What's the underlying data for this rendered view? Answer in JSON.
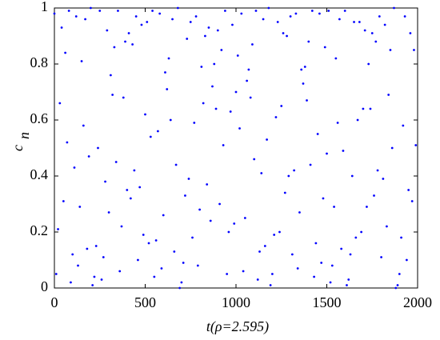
{
  "chart_data": {
    "type": "scatter",
    "xlabel": "t(ρ=2.595)",
    "ylabel": "c",
    "ylabel_subscript": "n",
    "color": "#0000ff",
    "xlim": [
      0,
      2000
    ],
    "xticks": [
      0,
      500,
      1000,
      1500,
      2000
    ],
    "ylim": [
      0,
      1
    ],
    "yticks": [
      0,
      0.2,
      0.4,
      0.6,
      0.8,
      1
    ],
    "x": [
      0,
      10,
      20,
      30,
      40,
      50,
      60,
      70,
      80,
      90,
      100,
      110,
      120,
      130,
      140,
      150,
      160,
      170,
      180,
      190,
      200,
      210,
      220,
      230,
      240,
      250,
      260,
      270,
      280,
      290,
      300,
      310,
      320,
      330,
      340,
      350,
      360,
      370,
      380,
      390,
      400,
      410,
      420,
      430,
      440,
      450,
      460,
      470,
      480,
      490,
      500,
      510,
      520,
      530,
      540,
      550,
      560,
      570,
      580,
      590,
      600,
      610,
      620,
      630,
      640,
      650,
      660,
      670,
      680,
      690,
      700,
      710,
      720,
      730,
      740,
      750,
      760,
      770,
      780,
      790,
      800,
      810,
      820,
      830,
      840,
      850,
      860,
      870,
      880,
      890,
      900,
      910,
      920,
      930,
      940,
      950,
      960,
      970,
      980,
      990,
      1000,
      1010,
      1020,
      1030,
      1040,
      1050,
      1060,
      1070,
      1080,
      1090,
      1100,
      1110,
      1120,
      1130,
      1140,
      1150,
      1160,
      1170,
      1180,
      1190,
      1200,
      1210,
      1220,
      1230,
      1240,
      1250,
      1260,
      1270,
      1280,
      1290,
      1300,
      1310,
      1320,
      1330,
      1340,
      1350,
      1360,
      1370,
      1380,
      1390,
      1400,
      1410,
      1420,
      1430,
      1440,
      1450,
      1460,
      1470,
      1480,
      1490,
      1500,
      1510,
      1520,
      1530,
      1540,
      1550,
      1560,
      1570,
      1580,
      1590,
      1600,
      1610,
      1620,
      1630,
      1640,
      1650,
      1660,
      1670,
      1680,
      1690,
      1700,
      1710,
      1720,
      1730,
      1740,
      1750,
      1760,
      1770,
      1780,
      1790,
      1800,
      1810,
      1820,
      1830,
      1840,
      1850,
      1860,
      1870,
      1880,
      1890,
      1900,
      1910,
      1920,
      1930,
      1940,
      1950,
      1960,
      1970,
      1980,
      1990
    ],
    "values": [
      0.98,
      0.05,
      0.21,
      0.66,
      0.93,
      0.31,
      0.84,
      0.52,
      0.99,
      0.02,
      0.12,
      0.43,
      0.97,
      0.08,
      0.29,
      0.81,
      0.58,
      0.96,
      0.14,
      0.47,
      1.0,
      0.01,
      0.04,
      0.15,
      0.5,
      0.99,
      0.03,
      0.11,
      0.38,
      0.92,
      0.27,
      0.76,
      0.69,
      0.86,
      0.45,
      0.99,
      0.06,
      0.22,
      0.68,
      0.88,
      0.35,
      0.91,
      0.32,
      0.87,
      0.42,
      0.97,
      0.1,
      0.36,
      0.94,
      0.19,
      0.62,
      0.95,
      0.16,
      0.54,
      0.99,
      0.04,
      0.17,
      0.56,
      0.98,
      0.07,
      0.26,
      0.77,
      0.71,
      0.82,
      0.6,
      0.96,
      0.13,
      0.44,
      1.0,
      0.0,
      0.02,
      0.09,
      0.33,
      0.89,
      0.39,
      0.95,
      0.18,
      0.59,
      0.97,
      0.08,
      0.28,
      0.79,
      0.66,
      0.9,
      0.37,
      0.93,
      0.24,
      0.72,
      0.8,
      0.64,
      0.92,
      0.3,
      0.85,
      0.51,
      0.99,
      0.05,
      0.2,
      0.63,
      0.94,
      0.23,
      0.7,
      0.83,
      0.57,
      0.98,
      0.06,
      0.25,
      0.74,
      0.78,
      0.68,
      0.87,
      0.46,
      0.99,
      0.03,
      0.13,
      0.41,
      0.96,
      0.15,
      0.53,
      1.0,
      0.01,
      0.05,
      0.19,
      0.61,
      0.95,
      0.2,
      0.65,
      0.91,
      0.34,
      0.9,
      0.4,
      0.97,
      0.12,
      0.42,
      0.98,
      0.07,
      0.27,
      0.78,
      0.73,
      0.79,
      0.67,
      0.88,
      0.44,
      0.99,
      0.04,
      0.16,
      0.55,
      0.98,
      0.09,
      0.32,
      0.86,
      0.48,
      0.99,
      0.02,
      0.08,
      0.29,
      0.82,
      0.59,
      0.96,
      0.14,
      0.49,
      0.99,
      0.01,
      0.03,
      0.12,
      0.4,
      0.95,
      0.18,
      0.6,
      0.95,
      0.2,
      0.64,
      0.92,
      0.29,
      0.8,
      0.64,
      0.91,
      0.33,
      0.88,
      0.42,
      0.97,
      0.11,
      0.39,
      0.94,
      0.22,
      0.69,
      0.85,
      0.5,
      1.0,
      0.0,
      0.01,
      0.05,
      0.18,
      0.58,
      0.97,
      0.1,
      0.35,
      0.91,
      0.31,
      0.85,
      0.51
    ]
  }
}
